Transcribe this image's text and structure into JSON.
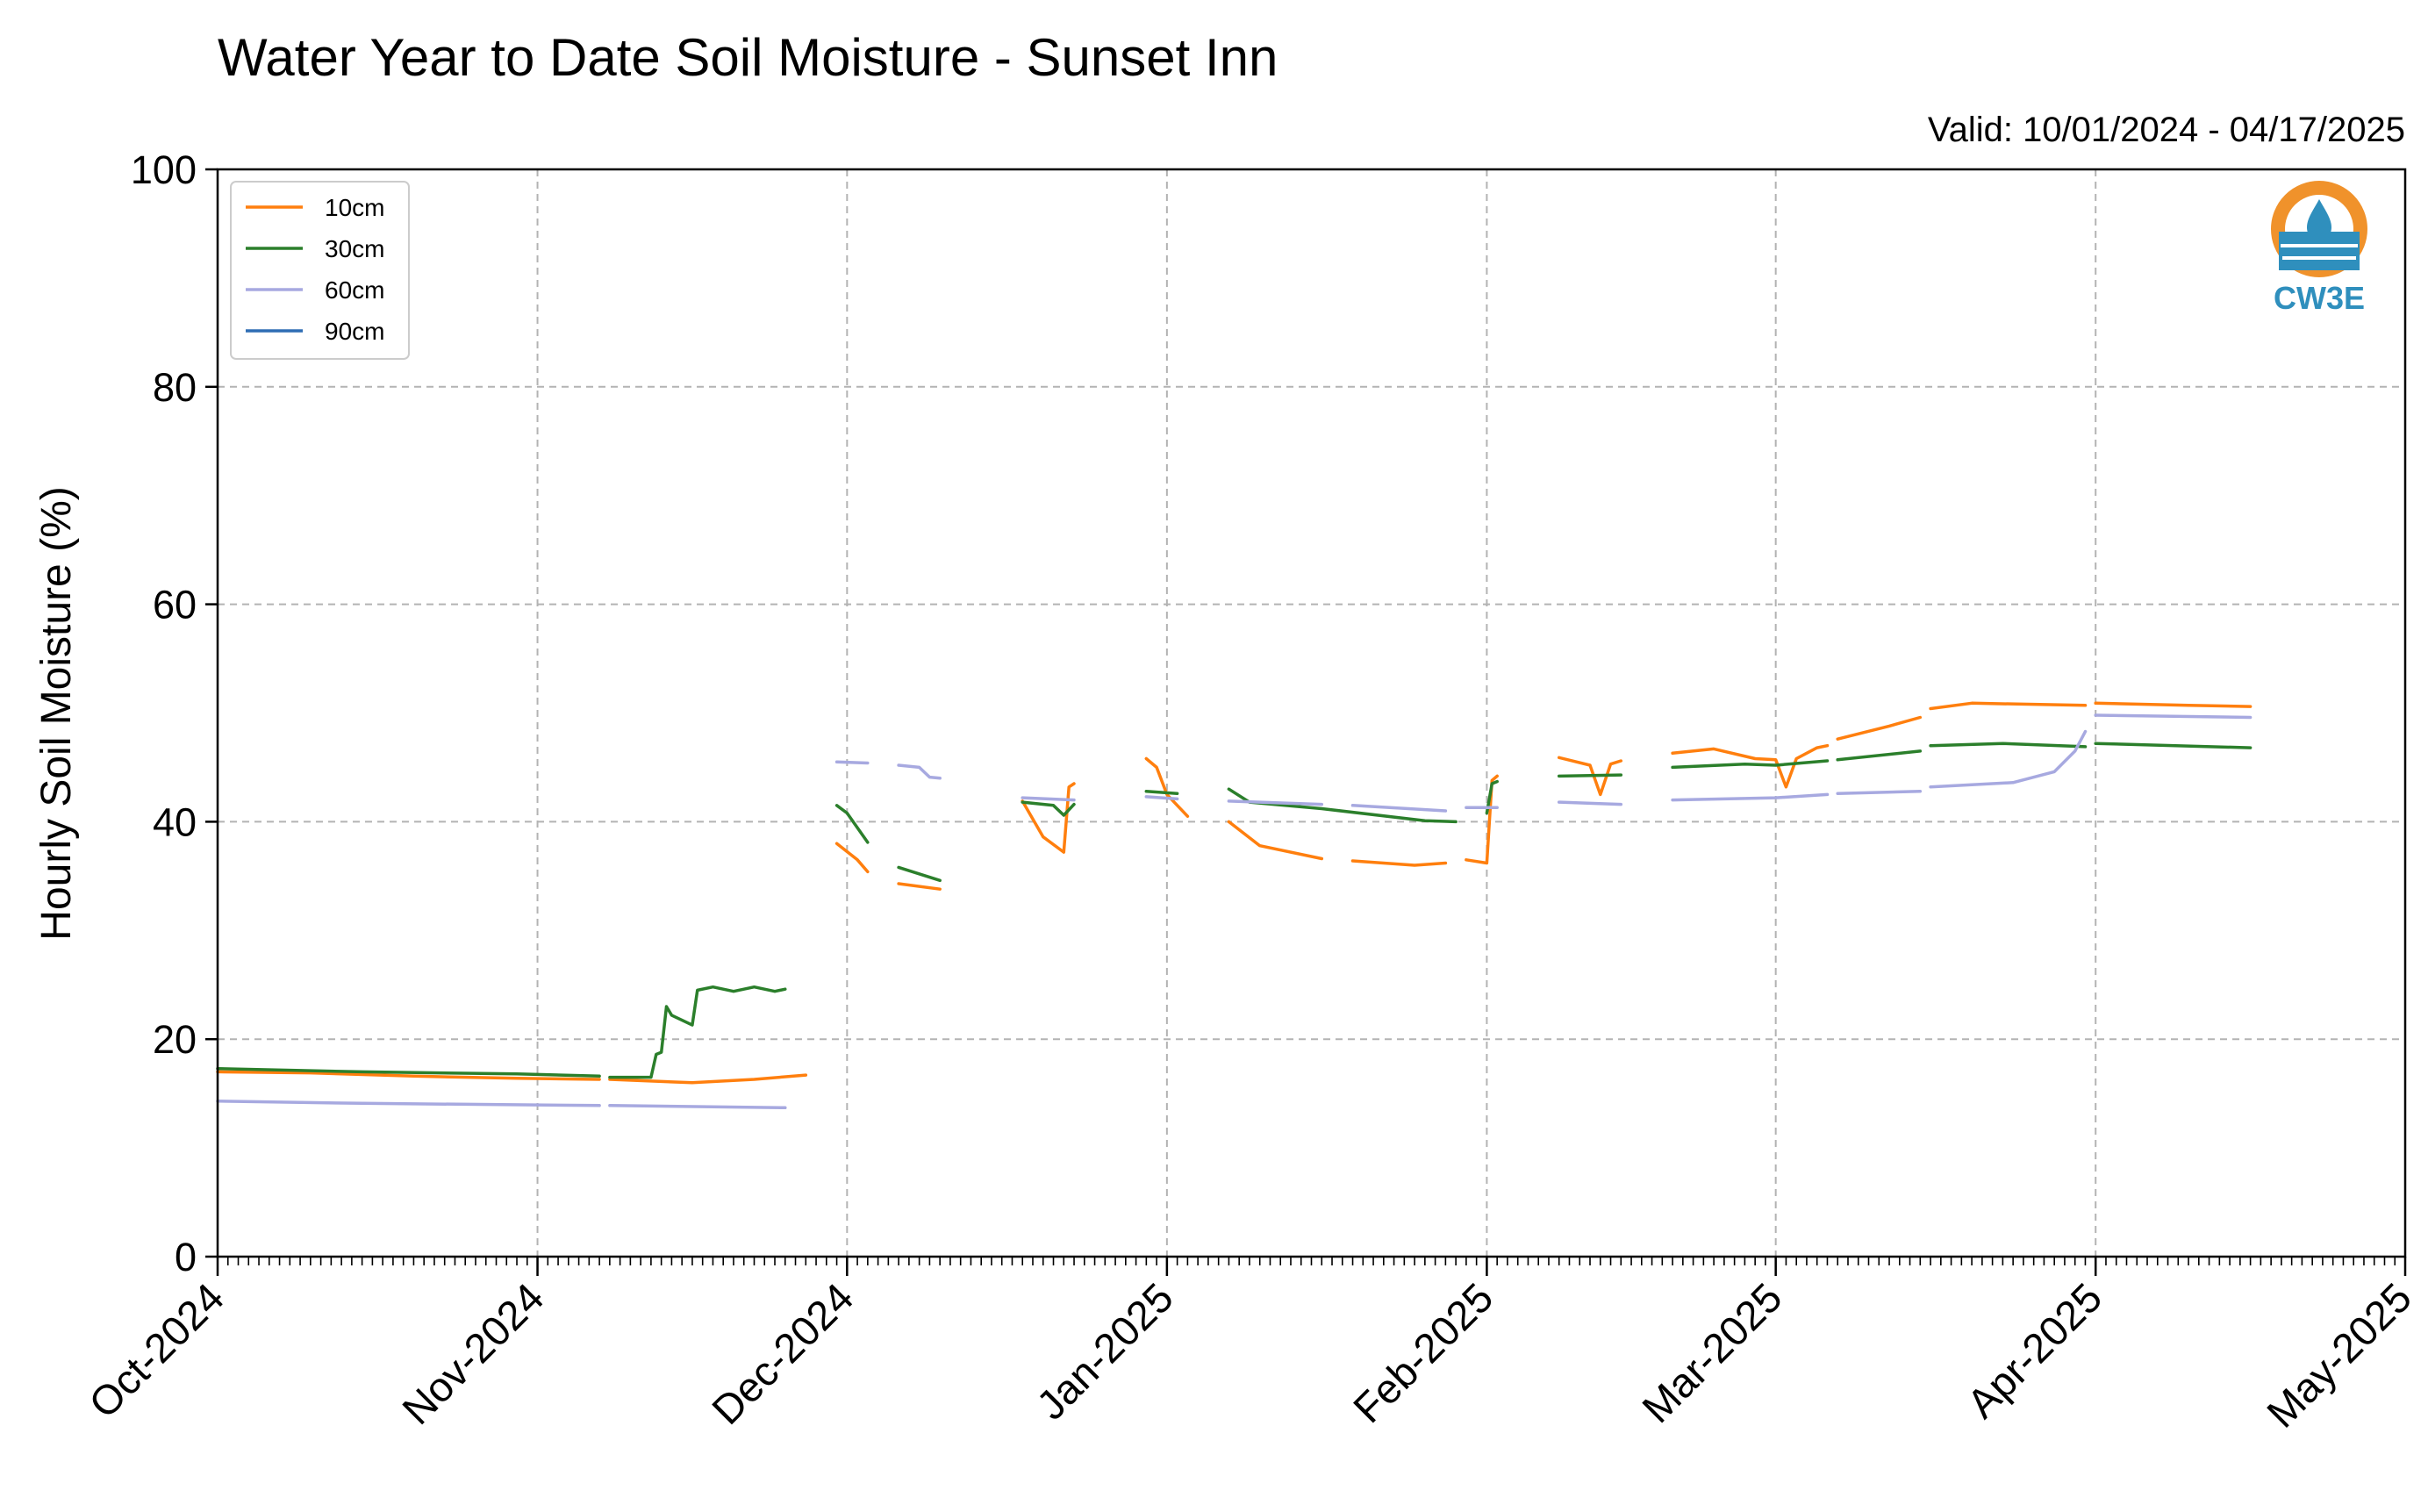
{
  "chart_data": {
    "type": "line",
    "title": "Water Year to Date Soil Moisture - Sunset Inn",
    "subtitle": "Valid: 10/01/2024 - 04/17/2025",
    "xlabel": "",
    "ylabel": "Hourly Soil Moisture (%)",
    "ylim": [
      0,
      100
    ],
    "yticks": [
      0,
      20,
      40,
      60,
      80,
      100
    ],
    "xlim": [
      "2024-10-01",
      "2025-05-01"
    ],
    "xticks": [
      {
        "date": "2024-10-01",
        "label": "Oct-2024"
      },
      {
        "date": "2024-11-01",
        "label": "Nov-2024"
      },
      {
        "date": "2024-12-01",
        "label": "Dec-2024"
      },
      {
        "date": "2025-01-01",
        "label": "Jan-2025"
      },
      {
        "date": "2025-02-01",
        "label": "Feb-2025"
      },
      {
        "date": "2025-03-01",
        "label": "Mar-2025"
      },
      {
        "date": "2025-04-01",
        "label": "Apr-2025"
      },
      {
        "date": "2025-05-01",
        "label": "May-2025"
      }
    ],
    "grid": true,
    "legend_position": "top-left",
    "series": [
      {
        "name": "10cm",
        "color": "#ff7f0e",
        "segments": [
          [
            [
              "2024-10-01",
              17.0
            ],
            [
              "2024-10-10",
              16.9
            ],
            [
              "2024-10-20",
              16.6
            ],
            [
              "2024-10-30",
              16.4
            ],
            [
              "2024-11-07",
              16.3
            ]
          ],
          [
            [
              "2024-11-08",
              16.3
            ],
            [
              "2024-11-16",
              16.0
            ],
            [
              "2024-11-22",
              16.3
            ],
            [
              "2024-11-27",
              16.7
            ]
          ],
          [
            [
              "2024-11-30",
              38.0
            ],
            [
              "2024-12-02",
              36.5
            ],
            [
              "2024-12-03",
              35.4
            ]
          ],
          [
            [
              "2024-12-06",
              34.3
            ],
            [
              "2024-12-10",
              33.8
            ]
          ],
          [
            [
              "2024-12-18",
              41.9
            ],
            [
              "2024-12-20",
              38.6
            ],
            [
              "2024-12-22",
              37.2
            ],
            [
              "2024-12-22.5",
              43.2
            ],
            [
              "2024-12-23",
              43.5
            ]
          ],
          [
            [
              "2024-12-30",
              45.8
            ],
            [
              "2024-12-31",
              45.0
            ],
            [
              "2025-01-01",
              42.5
            ],
            [
              "2025-01-03",
              40.5
            ]
          ],
          [
            [
              "2025-01-07",
              40.0
            ],
            [
              "2025-01-10",
              37.8
            ],
            [
              "2025-01-16",
              36.6
            ]
          ],
          [
            [
              "2025-01-19",
              36.4
            ],
            [
              "2025-01-25",
              36.0
            ],
            [
              "2025-01-28",
              36.2
            ]
          ],
          [
            [
              "2025-01-30",
              36.5
            ],
            [
              "2025-02-01",
              36.2
            ],
            [
              "2025-02-01.5",
              43.8
            ],
            [
              "2025-02-02",
              44.2
            ]
          ],
          [
            [
              "2025-02-08",
              45.9
            ],
            [
              "2025-02-11",
              45.2
            ],
            [
              "2025-02-12",
              42.5
            ],
            [
              "2025-02-13",
              45.3
            ],
            [
              "2025-02-14",
              45.6
            ]
          ],
          [
            [
              "2025-02-19",
              46.3
            ],
            [
              "2025-02-23",
              46.7
            ],
            [
              "2025-02-27",
              45.8
            ],
            [
              "2025-03-01",
              45.7
            ],
            [
              "2025-03-02",
              43.2
            ],
            [
              "2025-03-03",
              45.8
            ],
            [
              "2025-03-05",
              46.8
            ],
            [
              "2025-03-06",
              47.0
            ]
          ],
          [
            [
              "2025-03-07",
              47.6
            ],
            [
              "2025-03-12",
              48.8
            ],
            [
              "2025-03-15",
              49.6
            ]
          ],
          [
            [
              "2025-03-16",
              50.4
            ],
            [
              "2025-03-20",
              50.9
            ],
            [
              "2025-03-31",
              50.7
            ]
          ],
          [
            [
              "2025-04-01",
              50.9
            ],
            [
              "2025-04-10",
              50.7
            ],
            [
              "2025-04-16",
              50.6
            ]
          ]
        ]
      },
      {
        "name": "30cm",
        "color": "#2b7f2b",
        "segments": [
          [
            [
              "2024-10-01",
              17.3
            ],
            [
              "2024-10-15",
              17.0
            ],
            [
              "2024-10-30",
              16.8
            ],
            [
              "2024-11-07",
              16.6
            ]
          ],
          [
            [
              "2024-11-08",
              16.5
            ],
            [
              "2024-11-12",
              16.5
            ],
            [
              "2024-11-12.5",
              18.6
            ],
            [
              "2024-11-13",
              18.8
            ],
            [
              "2024-11-13.5",
              23.0
            ],
            [
              "2024-11-14",
              22.2
            ],
            [
              "2024-11-16",
              21.3
            ],
            [
              "2024-11-16.5",
              24.5
            ],
            [
              "2024-11-18",
              24.8
            ],
            [
              "2024-11-20",
              24.4
            ],
            [
              "2024-11-22",
              24.8
            ],
            [
              "2024-11-24",
              24.4
            ],
            [
              "2024-11-25",
              24.6
            ]
          ],
          [
            [
              "2024-11-30",
              41.5
            ],
            [
              "2024-12-01",
              40.8
            ],
            [
              "2024-12-03",
              38.1
            ]
          ],
          [
            [
              "2024-12-06",
              35.8
            ],
            [
              "2024-12-10",
              34.6
            ]
          ],
          [
            [
              "2024-12-18",
              41.8
            ],
            [
              "2024-12-21",
              41.5
            ],
            [
              "2024-12-22",
              40.6
            ],
            [
              "2024-12-23",
              41.6
            ]
          ],
          [
            [
              "2024-12-30",
              42.8
            ],
            [
              "2025-01-02",
              42.6
            ]
          ],
          [
            [
              "2025-01-07",
              43.0
            ],
            [
              "2025-01-09",
              41.8
            ],
            [
              "2025-01-16",
              41.2
            ],
            [
              "2025-01-26",
              40.1
            ],
            [
              "2025-01-29",
              40.0
            ]
          ],
          [
            [
              "2025-02-01",
              40.8
            ],
            [
              "2025-02-01.5",
              43.5
            ],
            [
              "2025-02-02",
              43.7
            ]
          ],
          [
            [
              "2025-02-08",
              44.2
            ],
            [
              "2025-02-14",
              44.3
            ]
          ],
          [
            [
              "2025-02-19",
              45.0
            ],
            [
              "2025-02-26",
              45.3
            ],
            [
              "2025-03-01",
              45.2
            ],
            [
              "2025-03-06",
              45.6
            ]
          ],
          [
            [
              "2025-03-07",
              45.7
            ],
            [
              "2025-03-15",
              46.5
            ]
          ],
          [
            [
              "2025-03-16",
              47.0
            ],
            [
              "2025-03-23",
              47.2
            ],
            [
              "2025-03-31",
              46.9
            ]
          ],
          [
            [
              "2025-04-01",
              47.2
            ],
            [
              "2025-04-16",
              46.8
            ]
          ]
        ]
      },
      {
        "name": "60cm",
        "color": "#a7a9e0",
        "segments": [
          [
            [
              "2024-10-01",
              14.3
            ],
            [
              "2024-10-15",
              14.1
            ],
            [
              "2024-11-07",
              13.9
            ]
          ],
          [
            [
              "2024-11-08",
              13.9
            ],
            [
              "2024-11-25",
              13.7
            ]
          ],
          [
            [
              "2024-11-30",
              45.5
            ],
            [
              "2024-12-03",
              45.4
            ]
          ],
          [
            [
              "2024-12-06",
              45.2
            ],
            [
              "2024-12-08",
              45.0
            ],
            [
              "2024-12-09",
              44.1
            ],
            [
              "2024-12-10",
              44.0
            ]
          ],
          [
            [
              "2024-12-18",
              42.2
            ],
            [
              "2024-12-23",
              42.0
            ]
          ],
          [
            [
              "2024-12-30",
              42.3
            ],
            [
              "2025-01-02",
              42.1
            ]
          ],
          [
            [
              "2025-01-07",
              41.9
            ],
            [
              "2025-01-16",
              41.6
            ]
          ],
          [
            [
              "2025-01-19",
              41.5
            ],
            [
              "2025-01-28",
              41.0
            ]
          ],
          [
            [
              "2025-01-30",
              41.3
            ],
            [
              "2025-02-02",
              41.3
            ]
          ],
          [
            [
              "2025-02-08",
              41.8
            ],
            [
              "2025-02-14",
              41.6
            ]
          ],
          [
            [
              "2025-02-19",
              42.0
            ],
            [
              "2025-03-01",
              42.2
            ],
            [
              "2025-03-06",
              42.5
            ]
          ],
          [
            [
              "2025-03-07",
              42.6
            ],
            [
              "2025-03-15",
              42.8
            ]
          ],
          [
            [
              "2025-03-16",
              43.2
            ],
            [
              "2025-03-24",
              43.6
            ],
            [
              "2025-03-28",
              44.6
            ],
            [
              "2025-03-30",
              46.5
            ],
            [
              "2025-03-31",
              48.3
            ]
          ],
          [
            [
              "2025-04-01",
              49.8
            ],
            [
              "2025-04-16",
              49.6
            ]
          ]
        ]
      },
      {
        "name": "90cm",
        "color": "#2e6db4",
        "segments": []
      }
    ]
  },
  "logo": {
    "text": "CW3E",
    "ring_color": "#f0922b",
    "water_color": "#2f8fbd",
    "text_color": "#2f8fbd"
  }
}
